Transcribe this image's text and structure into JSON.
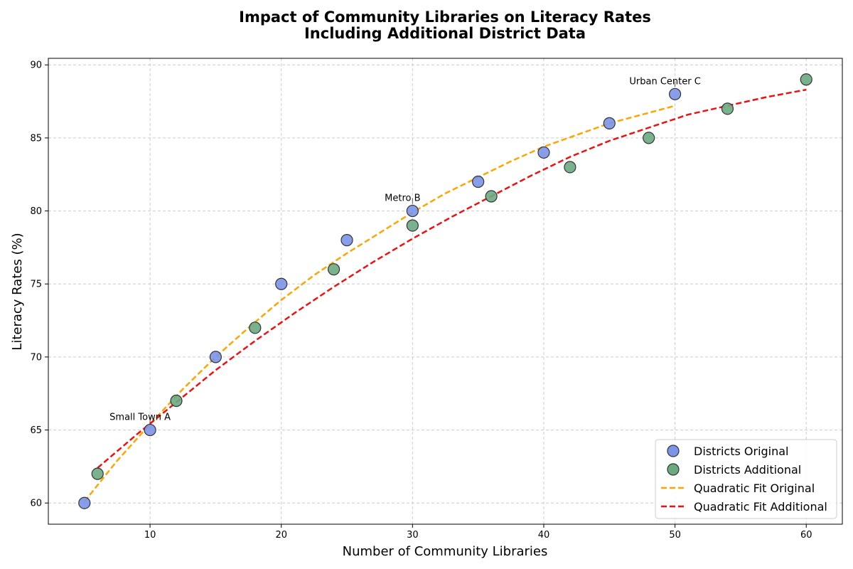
{
  "chart_data": {
    "type": "scatter",
    "title_lines": [
      "Impact of Community Libraries on Literacy Rates",
      "Including Additional District Data"
    ],
    "xlabel": "Number of Community Libraries",
    "ylabel": "Literacy Rates (%)",
    "xlim": [
      2.25,
      62.75
    ],
    "ylim": [
      58.55,
      90.45
    ],
    "xticks": [
      10,
      20,
      30,
      40,
      50,
      60
    ],
    "yticks": [
      60,
      65,
      70,
      75,
      80,
      85,
      90
    ],
    "grid": true,
    "legend_position": "lower-right",
    "series": [
      {
        "name": "Districts Original",
        "kind": "scatter",
        "color": "#7b93e8",
        "x": [
          5,
          10,
          15,
          20,
          25,
          30,
          35,
          40,
          45,
          50
        ],
        "y": [
          60,
          65,
          70,
          75,
          78,
          80,
          82,
          84,
          86,
          88
        ]
      },
      {
        "name": "Districts Additional",
        "kind": "scatter",
        "color": "#6aaa80",
        "x": [
          6,
          12,
          18,
          24,
          30,
          36,
          42,
          48,
          54,
          60
        ],
        "y": [
          62,
          67,
          72,
          76,
          79,
          81,
          83,
          85,
          87,
          89
        ]
      },
      {
        "name": "Quadratic Fit Original",
        "kind": "line",
        "color": "#ffa500",
        "x": [
          5,
          7.5,
          10,
          12.5,
          15,
          17.5,
          20,
          22.5,
          25,
          27.5,
          30,
          32.5,
          35,
          37.5,
          40,
          42.5,
          45,
          47.5,
          50
        ],
        "y": [
          60.1,
          62.9,
          65.4,
          67.8,
          70.0,
          72.0,
          73.9,
          75.6,
          77.1,
          78.5,
          79.9,
          81.2,
          82.3,
          83.4,
          84.4,
          85.2,
          86.0,
          86.6,
          87.2
        ]
      },
      {
        "name": "Quadratic Fit Additional",
        "kind": "line",
        "color": "#ee1111",
        "x": [
          6,
          9,
          12,
          15,
          18,
          21,
          24,
          27,
          30,
          33,
          36,
          39,
          42,
          45,
          48,
          51,
          54,
          57,
          60
        ],
        "y": [
          62.4,
          64.7,
          66.9,
          69.1,
          71.1,
          73.0,
          74.8,
          76.5,
          78.1,
          79.6,
          81.0,
          82.4,
          83.7,
          84.8,
          85.7,
          86.6,
          87.2,
          87.8,
          88.3
        ]
      }
    ],
    "annotations": [
      {
        "text": "Small Town A",
        "x": 10,
        "y": 65
      },
      {
        "text": "Metro B",
        "x": 30,
        "y": 80
      },
      {
        "text": "Urban Center C",
        "x": 50,
        "y": 88
      }
    ]
  }
}
